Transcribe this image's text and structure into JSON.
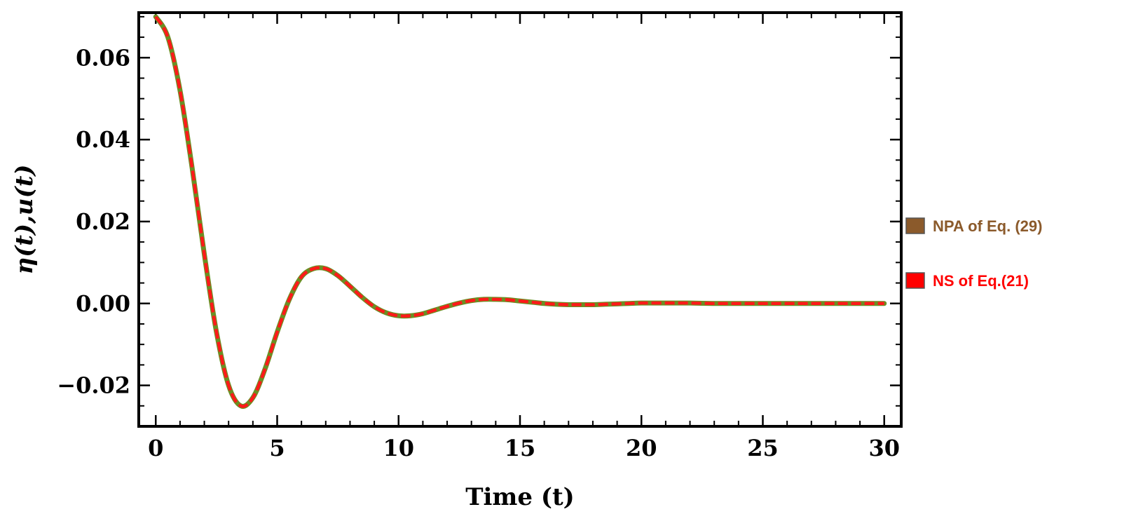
{
  "chart_data": {
    "type": "line",
    "xlabel": "Time (t)",
    "ylabel": "η(t),u(t)",
    "xlim": [
      -0.7,
      30.7
    ],
    "ylim": [
      -0.03,
      0.071
    ],
    "xticks": [
      0,
      5,
      10,
      15,
      20,
      25,
      30
    ],
    "xtick_labels": [
      "0",
      "5",
      "10",
      "15",
      "20",
      "25",
      "30"
    ],
    "yticks": [
      -0.02,
      0.0,
      0.02,
      0.04,
      0.06
    ],
    "ytick_labels": [
      "−0.02",
      "0.00",
      "0.02",
      "0.04",
      "0.06"
    ],
    "grid": false,
    "legend_position": "right",
    "series": [
      {
        "name": "NPA of Eq. (29)",
        "color": "#8B5A2B",
        "line_color": "#6b8e23",
        "x": [
          0,
          0.5,
          1,
          1.5,
          2,
          2.5,
          3,
          3.5,
          4,
          4.5,
          5,
          5.5,
          6,
          6.5,
          7,
          7.5,
          8,
          8.5,
          9,
          9.5,
          10,
          10.5,
          11,
          11.5,
          12,
          12.5,
          13,
          13.5,
          14,
          14.5,
          15,
          15.5,
          16,
          16.5,
          17,
          17.5,
          18,
          18.5,
          19,
          19.5,
          20,
          21,
          22,
          23,
          24,
          25,
          26,
          27,
          28,
          29,
          30
        ],
        "y": [
          0.07,
          0.065,
          0.052,
          0.033,
          0.012,
          -0.007,
          -0.02,
          -0.025,
          -0.023,
          -0.016,
          -0.007,
          0.001,
          0.0065,
          0.0085,
          0.0085,
          0.0068,
          0.0042,
          0.0015,
          -0.0008,
          -0.0023,
          -0.003,
          -0.003,
          -0.0025,
          -0.0016,
          -0.0007,
          0.0001,
          0.0007,
          0.001,
          0.001,
          0.0009,
          0.0006,
          0.0003,
          0.0,
          -0.0002,
          -0.0003,
          -0.0003,
          -0.0003,
          -0.0002,
          -0.0001,
          0.0,
          0.0001,
          0.0001,
          0.0001,
          0.0,
          0.0,
          0.0,
          0.0,
          0.0,
          0.0,
          0.0,
          0.0
        ]
      },
      {
        "name": "NS of Eq.(21)",
        "color": "#ff0000",
        "line_color": "#ff1a1a",
        "x": [
          0,
          0.5,
          1,
          1.5,
          2,
          2.5,
          3,
          3.5,
          4,
          4.5,
          5,
          5.5,
          6,
          6.5,
          7,
          7.5,
          8,
          8.5,
          9,
          9.5,
          10,
          10.5,
          11,
          11.5,
          12,
          12.5,
          13,
          13.5,
          14,
          14.5,
          15,
          15.5,
          16,
          16.5,
          17,
          17.5,
          18,
          18.5,
          19,
          19.5,
          20,
          21,
          22,
          23,
          24,
          25,
          26,
          27,
          28,
          29,
          30
        ],
        "y": [
          0.07,
          0.065,
          0.052,
          0.033,
          0.012,
          -0.007,
          -0.02,
          -0.025,
          -0.023,
          -0.016,
          -0.007,
          0.001,
          0.0065,
          0.0085,
          0.0085,
          0.0068,
          0.0042,
          0.0015,
          -0.0008,
          -0.0023,
          -0.003,
          -0.003,
          -0.0025,
          -0.0016,
          -0.0007,
          0.0001,
          0.0007,
          0.001,
          0.001,
          0.0009,
          0.0006,
          0.0003,
          0.0,
          -0.0002,
          -0.0003,
          -0.0003,
          -0.0003,
          -0.0002,
          -0.0001,
          0.0,
          0.0001,
          0.0001,
          0.0001,
          0.0,
          0.0,
          0.0,
          0.0,
          0.0,
          0.0,
          0.0,
          0.0
        ]
      }
    ]
  }
}
